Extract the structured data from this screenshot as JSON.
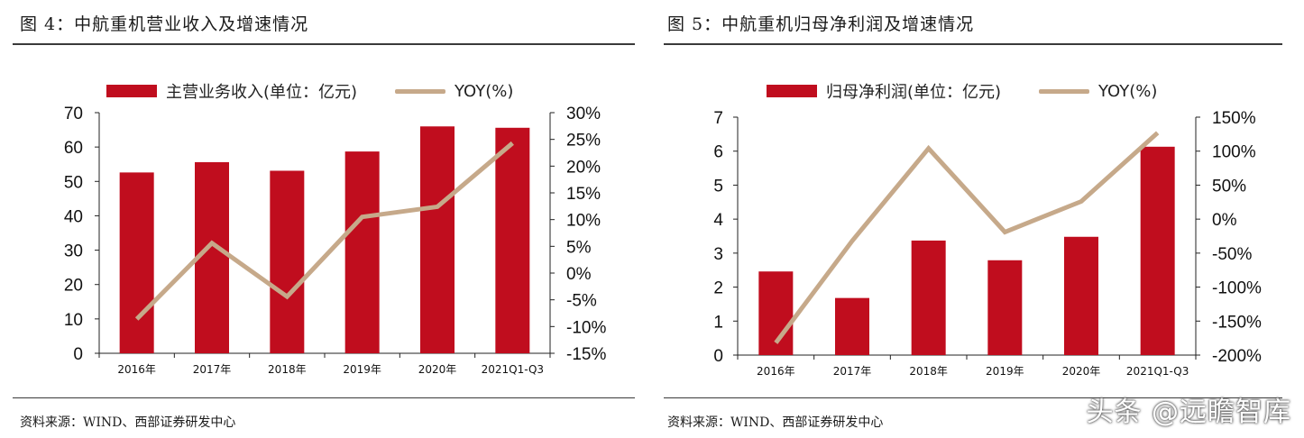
{
  "colors": {
    "bar": "#c00d1e",
    "line": "#c6a98a",
    "axis": "#222222",
    "rule": "#3a3a3a"
  },
  "charts": [
    {
      "figure_title": "图 4：中航重机营业收入及增速情况",
      "source": "资料来源：WIND、西部证券研发中心",
      "legend_bar": "主营业务收入(单位：亿元)",
      "legend_line": "YOY(%)"
    },
    {
      "figure_title": "图 5：中航重机归母净利润及增速情况",
      "source": "资料来源：WIND、西部证券研发中心",
      "legend_bar": "归母净利润(单位：亿元)",
      "legend_line": "YOY(%)"
    }
  ],
  "watermark": "头条 @远瞻智库",
  "chart_data": [
    {
      "type": "bar",
      "categories": [
        "2016年",
        "2017年",
        "2018年",
        "2019年",
        "2020年",
        "2021Q1-Q3"
      ],
      "series": [
        {
          "name": "主营业务收入(单位：亿元)",
          "type": "bar",
          "axis": "left",
          "values": [
            52.6,
            55.6,
            53.1,
            58.7,
            66.0,
            65.6
          ]
        },
        {
          "name": "YOY(%)",
          "type": "line",
          "axis": "right",
          "values": [
            -8.6,
            5.6,
            -4.4,
            10.5,
            12.4,
            24.3
          ]
        }
      ],
      "y_left": {
        "ylim": [
          0,
          70
        ],
        "ticks": [
          "0",
          "10",
          "20",
          "30",
          "40",
          "50",
          "60",
          "70"
        ],
        "min": 0,
        "max": 70,
        "step": 10
      },
      "y_right": {
        "ylim": [
          -15,
          30
        ],
        "ticks": [
          "-15%",
          "-10%",
          "-5%",
          "0%",
          "5%",
          "10%",
          "15%",
          "20%",
          "25%",
          "30%"
        ],
        "min": -15,
        "max": 30,
        "step": 5
      },
      "legend_position": "top"
    },
    {
      "type": "bar",
      "categories": [
        "2016年",
        "2017年",
        "2018年",
        "2019年",
        "2020年",
        "2021Q1-Q3"
      ],
      "series": [
        {
          "name": "归母净利润(单位：亿元)",
          "type": "bar",
          "axis": "left",
          "values": [
            2.46,
            1.68,
            3.37,
            2.79,
            3.48,
            6.13
          ]
        },
        {
          "name": "YOY(%)",
          "type": "line",
          "axis": "right",
          "values": [
            -182,
            -32,
            104,
            -19,
            26,
            127
          ]
        }
      ],
      "y_left": {
        "ylim": [
          0,
          7
        ],
        "ticks": [
          "0",
          "1",
          "2",
          "3",
          "4",
          "5",
          "6",
          "7"
        ],
        "min": 0,
        "max": 7,
        "step": 1
      },
      "y_right": {
        "ylim": [
          -200,
          150
        ],
        "ticks": [
          "-200%",
          "-150%",
          "-100%",
          "-50%",
          "0%",
          "50%",
          "100%",
          "150%"
        ],
        "min": -200,
        "max": 150,
        "step": 50
      },
      "legend_position": "top"
    }
  ]
}
